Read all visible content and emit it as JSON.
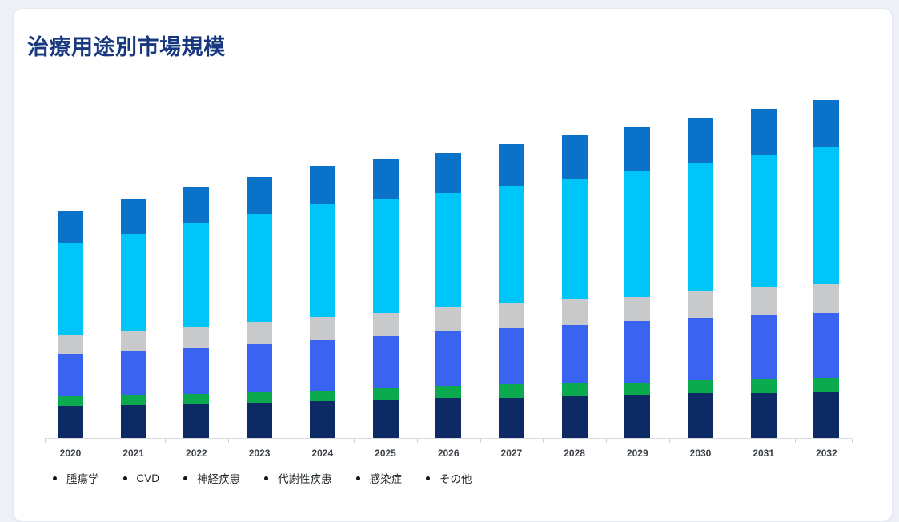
{
  "header": {
    "title": "治療用途別市場規模"
  },
  "colors": {
    "page_background": "#edf1f7",
    "card_background": "#ffffff",
    "title_text": "#17377e",
    "axis_line": "#d9dcdf",
    "axis_label_text": "#3b4147",
    "legend_text": "#1f2428"
  },
  "chart_data": {
    "type": "bar",
    "stacked": true,
    "title": "治療用途別市場規模",
    "xlabel": "",
    "ylabel": "",
    "units": "relative (no y-axis or value labels shown in image)",
    "ylim": [
      0,
      450
    ],
    "grid": false,
    "legend_position": "bottom",
    "categories": [
      "2020",
      "2021",
      "2022",
      "2023",
      "2024",
      "2025",
      "2026",
      "2027",
      "2028",
      "2029",
      "2030",
      "2031",
      "2032"
    ],
    "series": [
      {
        "name": "腫瘍学",
        "color": "#0e2a64",
        "values": [
          40,
          41,
          42,
          44,
          46,
          48,
          50,
          50,
          52,
          54,
          56,
          56,
          57
        ]
      },
      {
        "name": "CVD",
        "color": "#0caa4e",
        "values": [
          13,
          13,
          13,
          13,
          13,
          14,
          15,
          17,
          16,
          15,
          16,
          17,
          18
        ]
      },
      {
        "name": "神経疾患",
        "color": "#3b63f1",
        "values": [
          52,
          54,
          57,
          60,
          63,
          65,
          68,
          70,
          73,
          77,
          78,
          80,
          81
        ]
      },
      {
        "name": "代謝性疾患",
        "color": "#c8c9ca",
        "values": [
          23,
          25,
          26,
          28,
          29,
          29,
          30,
          32,
          32,
          30,
          34,
          36,
          36
        ]
      },
      {
        "name": "感染症",
        "color": "#00c5f8",
        "values": [
          115,
          122,
          130,
          135,
          141,
          143,
          143,
          146,
          151,
          157,
          159,
          164,
          171
        ]
      },
      {
        "name": "その他",
        "color": "#0a73c9",
        "values": [
          40,
          43,
          45,
          46,
          48,
          49,
          50,
          52,
          54,
          55,
          57,
          58,
          59
        ]
      }
    ],
    "totals": [
      283,
      298,
      313,
      326,
      340,
      348,
      356,
      367,
      378,
      388,
      400,
      411,
      422
    ]
  },
  "legend": {
    "items": [
      "腫瘍学",
      "CVD",
      "神経疾患",
      "代謝性疾患",
      "感染症",
      "その他"
    ]
  }
}
